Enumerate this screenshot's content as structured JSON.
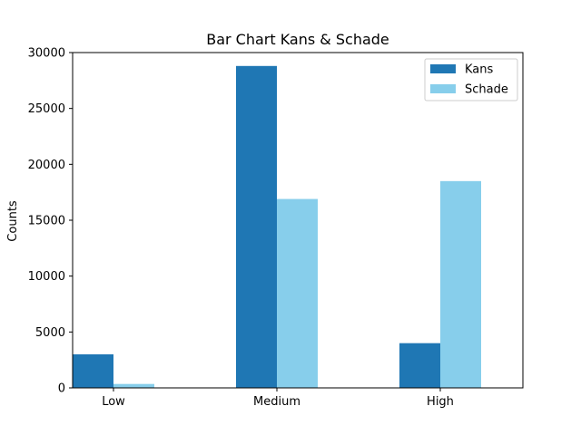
{
  "chart_data": {
    "type": "bar",
    "title": "Bar Chart Kans & Schade",
    "xlabel": "",
    "ylabel": "Counts",
    "categories": [
      "Low",
      "Medium",
      "High"
    ],
    "series": [
      {
        "name": "Kans",
        "values": [
          3000,
          28800,
          4000
        ],
        "color": "#1f77b4"
      },
      {
        "name": "Schade",
        "values": [
          350,
          16900,
          18500
        ],
        "color": "#87ceeb"
      }
    ],
    "ylim": [
      0,
      30000
    ],
    "yticks": [
      0,
      5000,
      10000,
      15000,
      20000,
      25000,
      30000
    ],
    "grid": false,
    "legend": "top-right"
  }
}
